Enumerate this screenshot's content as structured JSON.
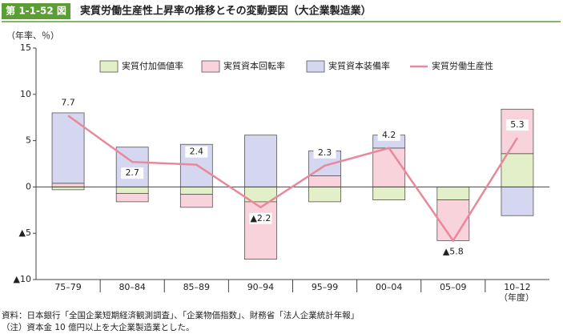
{
  "chart_data": {
    "type": "bar",
    "figure_number": "第 1-1-52 図",
    "title": "実質労働生産性上昇率の推移とその変動要因（大企業製造業）",
    "y_unit_label": "（年率、％）",
    "x_unit_label": "（年度）",
    "categories": [
      "75–79",
      "80–84",
      "85–89",
      "90–94",
      "95–99",
      "00–04",
      "05–09",
      "10–12"
    ],
    "series": [
      {
        "name": "実質付加価値率",
        "type": "bar",
        "color": "#e3efc9",
        "values": [
          -0.3,
          -0.7,
          -0.8,
          -1.6,
          -1.6,
          -1.4,
          -1.4,
          3.6
        ]
      },
      {
        "name": "実質資本回転率",
        "type": "bar",
        "color": "#f8d3db",
        "values": [
          0.4,
          -0.9,
          -1.4,
          -6.2,
          1.2,
          4.2,
          -4.4,
          4.8
        ]
      },
      {
        "name": "実質資本装備率",
        "type": "bar",
        "color": "#d4d7ef",
        "values": [
          7.6,
          4.3,
          4.6,
          5.6,
          2.7,
          1.4,
          0,
          -3.1
        ]
      },
      {
        "name": "実質労働生産性",
        "type": "line",
        "color": "#e8899b",
        "values": [
          7.7,
          2.7,
          2.4,
          -2.2,
          2.3,
          4.2,
          -5.8,
          5.3
        ],
        "value_labels": [
          "7.7",
          "2.7",
          "2.4",
          "▲2.2",
          "2.3",
          "4.2",
          "▲5.8",
          "5.3"
        ]
      }
    ],
    "ylim": [
      -10,
      15
    ],
    "yticks": [
      {
        "value": -10,
        "label": "▲10"
      },
      {
        "value": -5,
        "label": "▲5"
      },
      0,
      5,
      10,
      15
    ],
    "grid": false,
    "legend": "top",
    "notes": [
      "資料：日本銀行「全国企業短期経済観測調査」、「企業物価指数」、財務省「法人企業統計年報」",
      "（注）資本金 10 億円以上を大企業製造業とした。"
    ]
  }
}
